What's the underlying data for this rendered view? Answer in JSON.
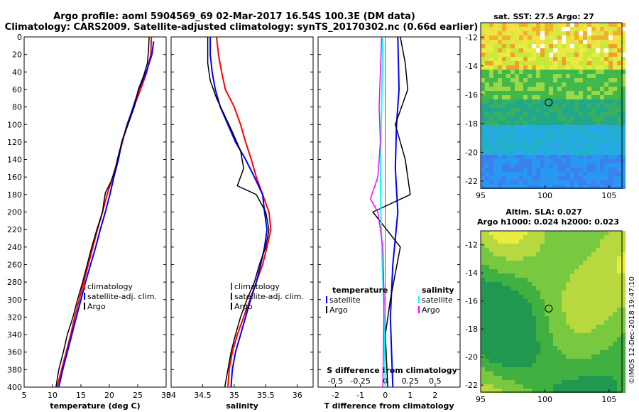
{
  "figure": {
    "title_line1": "Argo profile: aoml 5904569_69 02-Mar-2017 16.54S 100.3E (DM data)",
    "title_line2": "Climatology: CARS2009. Satellite-adjusted climatology: synTS_20170302.nc (0.66d earlier)",
    "credit": "©IMOS 12-Dec-2018 19:47:10"
  },
  "colors": {
    "climatology": "#ff0000",
    "satellite": "#0000ff",
    "argo": "#000000",
    "salinity_satellite": "#00ffff",
    "salinity_argo": "#ff00ff"
  },
  "chart_data": [
    {
      "type": "line",
      "name": "temperature",
      "xlabel": "temperature (deg C)",
      "ylabel": "",
      "xlim": [
        5,
        30
      ],
      "ylim": [
        400,
        0
      ],
      "xticks": [
        "5",
        "10",
        "15",
        "20",
        "25",
        "30"
      ],
      "yticks": [
        "0",
        "20",
        "40",
        "60",
        "80",
        "100",
        "120",
        "140",
        "160",
        "180",
        "200",
        "220",
        "240",
        "260",
        "280",
        "300",
        "320",
        "340",
        "360",
        "380",
        "400"
      ],
      "legend": [
        "climatology",
        "satellite-adj. clim.",
        "Argo"
      ],
      "legend_position": "bottom-right",
      "series": [
        {
          "name": "climatology",
          "color": "#ff0000",
          "points": [
            [
              27.4,
              0
            ],
            [
              27.3,
              20
            ],
            [
              26.6,
              40
            ],
            [
              25.5,
              60
            ],
            [
              24.3,
              80
            ],
            [
              23.1,
              100
            ],
            [
              22.3,
              120
            ],
            [
              21.5,
              140
            ],
            [
              20.6,
              160
            ],
            [
              19.6,
              180
            ],
            [
              18.8,
              200
            ],
            [
              17.9,
              220
            ],
            [
              17.1,
              240
            ],
            [
              16.3,
              260
            ],
            [
              15.5,
              280
            ],
            [
              14.7,
              300
            ],
            [
              13.9,
              320
            ],
            [
              13.2,
              340
            ],
            [
              12.4,
              360
            ],
            [
              11.6,
              380
            ],
            [
              10.8,
              400
            ]
          ]
        },
        {
          "name": "satellite-adj. clim.",
          "color": "#0000ff",
          "points": [
            [
              27.8,
              5
            ],
            [
              27.5,
              20
            ],
            [
              26.5,
              40
            ],
            [
              25.2,
              60
            ],
            [
              24.2,
              80
            ],
            [
              23.2,
              100
            ],
            [
              22.2,
              120
            ],
            [
              21.6,
              140
            ],
            [
              20.8,
              160
            ],
            [
              20.1,
              180
            ],
            [
              19.3,
              200
            ],
            [
              18.4,
              220
            ],
            [
              17.6,
              240
            ],
            [
              16.7,
              260
            ],
            [
              15.8,
              280
            ],
            [
              15.0,
              300
            ],
            [
              14.2,
              320
            ],
            [
              13.4,
              340
            ],
            [
              12.6,
              360
            ],
            [
              11.8,
              380
            ],
            [
              11.1,
              400
            ]
          ]
        },
        {
          "name": "Argo",
          "color": "#000000",
          "points": [
            [
              27.0,
              0
            ],
            [
              26.9,
              15
            ],
            [
              26.7,
              30
            ],
            [
              26.0,
              45
            ],
            [
              25.1,
              60
            ],
            [
              24.4,
              80
            ],
            [
              23.3,
              100
            ],
            [
              22.2,
              120
            ],
            [
              21.4,
              140
            ],
            [
              21.1,
              150
            ],
            [
              20.3,
              165
            ],
            [
              19.3,
              178
            ],
            [
              19.0,
              190
            ],
            [
              18.8,
              200
            ],
            [
              17.8,
              220
            ],
            [
              16.9,
              240
            ],
            [
              16.1,
              260
            ],
            [
              15.3,
              280
            ],
            [
              14.4,
              300
            ],
            [
              13.6,
              320
            ],
            [
              12.6,
              340
            ],
            [
              11.9,
              360
            ],
            [
              11.1,
              380
            ],
            [
              10.6,
              400
            ]
          ]
        }
      ]
    },
    {
      "type": "line",
      "name": "salinity",
      "xlabel": "salinity",
      "ylabel": "",
      "xlim": [
        34,
        36.25
      ],
      "ylim": [
        400,
        0
      ],
      "xticks": [
        "34",
        "34.5",
        "35",
        "35.5",
        "36"
      ],
      "legend": [
        "climatology",
        "satellite-adj. clim.",
        "Argo"
      ],
      "legend_position": "bottom-right",
      "series": [
        {
          "name": "climatology",
          "color": "#ff0000",
          "points": [
            [
              34.72,
              0
            ],
            [
              34.75,
              20
            ],
            [
              34.8,
              40
            ],
            [
              34.86,
              60
            ],
            [
              35.0,
              80
            ],
            [
              35.1,
              100
            ],
            [
              35.18,
              120
            ],
            [
              35.27,
              140
            ],
            [
              35.35,
              160
            ],
            [
              35.45,
              180
            ],
            [
              35.55,
              200
            ],
            [
              35.58,
              220
            ],
            [
              35.52,
              240
            ],
            [
              35.45,
              260
            ],
            [
              35.35,
              280
            ],
            [
              35.25,
              300
            ],
            [
              35.15,
              320
            ],
            [
              35.05,
              340
            ],
            [
              34.97,
              360
            ],
            [
              34.92,
              380
            ],
            [
              34.9,
              400
            ]
          ]
        },
        {
          "name": "satellite-adj. clim.",
          "color": "#0000ff",
          "points": [
            [
              34.62,
              0
            ],
            [
              34.62,
              20
            ],
            [
              34.65,
              40
            ],
            [
              34.7,
              60
            ],
            [
              34.78,
              80
            ],
            [
              34.9,
              100
            ],
            [
              35.02,
              120
            ],
            [
              35.18,
              140
            ],
            [
              35.32,
              160
            ],
            [
              35.45,
              180
            ],
            [
              35.48,
              200
            ],
            [
              35.52,
              220
            ],
            [
              35.48,
              240
            ],
            [
              35.42,
              260
            ],
            [
              35.35,
              280
            ],
            [
              35.26,
              300
            ],
            [
              35.18,
              320
            ],
            [
              35.1,
              340
            ],
            [
              35.02,
              360
            ],
            [
              34.97,
              380
            ],
            [
              34.95,
              400
            ]
          ]
        },
        {
          "name": "Argo",
          "color": "#000000",
          "points": [
            [
              34.58,
              0
            ],
            [
              34.58,
              30
            ],
            [
              34.62,
              50
            ],
            [
              34.72,
              70
            ],
            [
              34.85,
              90
            ],
            [
              34.98,
              110
            ],
            [
              35.1,
              130
            ],
            [
              35.15,
              150
            ],
            [
              35.05,
              170
            ],
            [
              35.35,
              180
            ],
            [
              35.5,
              200
            ],
            [
              35.55,
              220
            ],
            [
              35.5,
              240
            ],
            [
              35.4,
              260
            ],
            [
              35.32,
              280
            ],
            [
              35.2,
              300
            ],
            [
              35.1,
              320
            ],
            [
              35.02,
              340
            ],
            [
              34.95,
              360
            ],
            [
              34.9,
              380
            ],
            [
              34.85,
              400
            ]
          ]
        }
      ]
    },
    {
      "type": "line",
      "name": "difference",
      "xlabel": "T difference from climatology",
      "xlabel_top": "S difference from climatology",
      "ylabel": "",
      "xlim": [
        -2.7,
        3.0
      ],
      "ylim": [
        400,
        0
      ],
      "xticks": [
        "-2",
        "-1",
        "0",
        "1",
        "2"
      ],
      "xticks_top": [
        "-0.5",
        "-0.25",
        "0",
        "0.25",
        "0.5"
      ],
      "legend_temperature": {
        "title": "temperature",
        "items": [
          "satellite",
          "Argo"
        ]
      },
      "legend_salinity": {
        "title": "salinity",
        "items": [
          "satellite",
          "Argo"
        ]
      },
      "legend_position": "bottom",
      "series": [
        {
          "name": "temperature satellite",
          "color": "#0000ff",
          "points": [
            [
              0.5,
              0
            ],
            [
              0.55,
              60
            ],
            [
              0.45,
              100
            ],
            [
              0.4,
              150
            ],
            [
              0.5,
              200
            ],
            [
              0.3,
              260
            ],
            [
              0.2,
              320
            ],
            [
              0.25,
              360
            ],
            [
              0.3,
              400
            ]
          ]
        },
        {
          "name": "temperature Argo",
          "color": "#000000",
          "points": [
            [
              0.6,
              0
            ],
            [
              0.8,
              30
            ],
            [
              0.9,
              60
            ],
            [
              0.4,
              100
            ],
            [
              0.8,
              140
            ],
            [
              1.0,
              180
            ],
            [
              -0.5,
              200
            ],
            [
              0.6,
              240
            ],
            [
              0.2,
              300
            ],
            [
              0.0,
              340
            ],
            [
              0.1,
              400
            ]
          ]
        },
        {
          "name": "salinity satellite",
          "color": "#00ffff",
          "points": [
            [
              -0.1,
              0
            ],
            [
              -0.15,
              80
            ],
            [
              -0.2,
              140
            ],
            [
              -0.18,
              200
            ],
            [
              -0.12,
              260
            ],
            [
              -0.05,
              320
            ],
            [
              0.0,
              400
            ]
          ]
        },
        {
          "name": "salinity Argo",
          "color": "#ff00ff",
          "points": [
            [
              -0.15,
              0
            ],
            [
              -0.2,
              40
            ],
            [
              -0.25,
              80
            ],
            [
              -0.2,
              120
            ],
            [
              -0.3,
              160
            ],
            [
              -0.6,
              185
            ],
            [
              -0.3,
              200
            ],
            [
              -0.1,
              240
            ],
            [
              -0.05,
              300
            ],
            [
              -0.08,
              360
            ],
            [
              -0.1,
              400
            ]
          ]
        }
      ]
    },
    {
      "type": "heatmap",
      "name": "sst_map",
      "title": "sat. SST: 27.5 Argo: 27",
      "xlim": [
        95,
        106
      ],
      "ylim": [
        -22.5,
        -11
      ],
      "xticks": [
        "95",
        "100",
        "105"
      ],
      "yticks": [
        "-12",
        "-14",
        "-16",
        "-18",
        "-20",
        "-22"
      ],
      "marker": {
        "lon": 100.3,
        "lat": -16.54
      }
    },
    {
      "type": "heatmap",
      "name": "sla_map",
      "title": "Altim. SLA: 0.027",
      "subtitle": "Argo h1000: 0.024 h2000: 0.023",
      "xlim": [
        95,
        106
      ],
      "ylim": [
        -22.5,
        -11
      ],
      "xticks": [
        "95",
        "100",
        "105"
      ],
      "yticks": [
        "-12",
        "-14",
        "-16",
        "-18",
        "-20",
        "-22"
      ],
      "marker": {
        "lon": 100.3,
        "lat": -16.54
      }
    }
  ]
}
